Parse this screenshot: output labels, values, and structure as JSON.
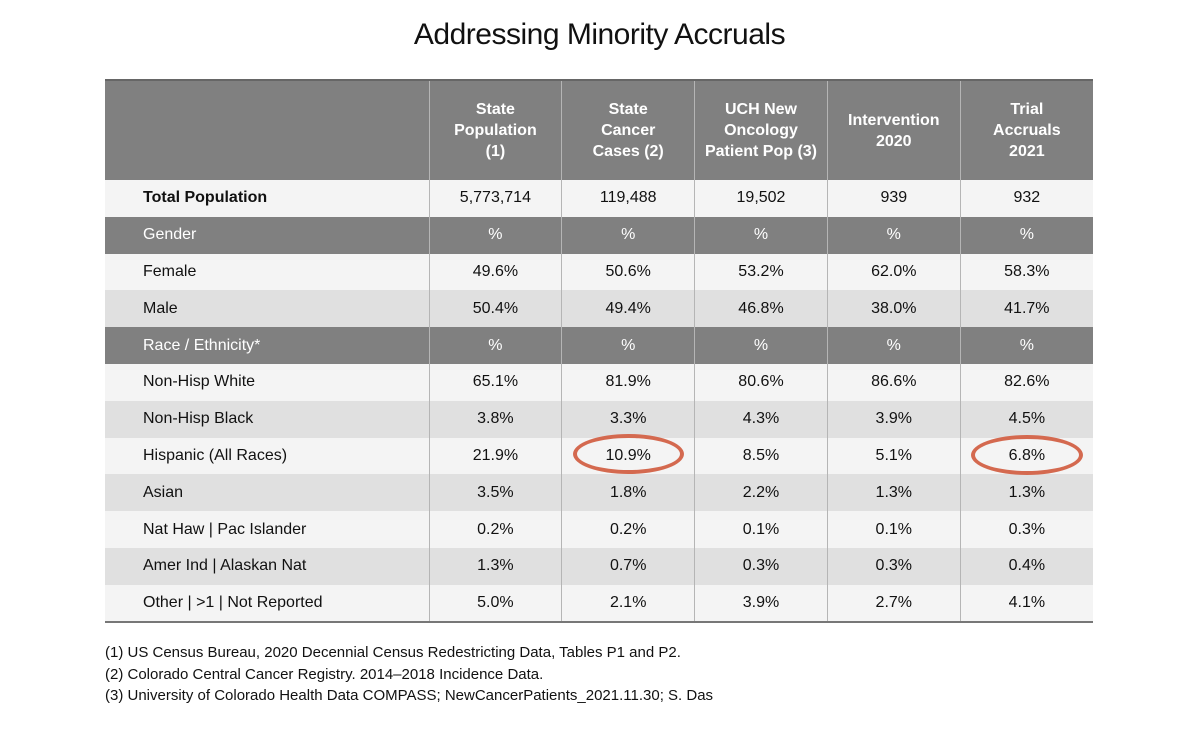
{
  "title": "Addressing Minority Accruals",
  "table": {
    "header": [
      "State\nPopulation\n(1)",
      "State\nCancer\nCases (2)",
      "UCH New\nOncology\nPatient Pop (3)",
      "Intervention\n2020",
      "Trial\nAccruals\n2021"
    ],
    "rows": [
      {
        "style": "total",
        "label": "Total Population",
        "cells": [
          "5,773,714",
          "119,488",
          "19,502",
          "939",
          "932"
        ]
      },
      {
        "style": "section",
        "label": "Gender",
        "cells": [
          "%",
          "%",
          "%",
          "%",
          "%"
        ]
      },
      {
        "style": "light",
        "label": "Female",
        "cells": [
          "49.6%",
          "50.6%",
          "53.2%",
          "62.0%",
          "58.3%"
        ]
      },
      {
        "style": "dark",
        "label": "Male",
        "cells": [
          "50.4%",
          "49.4%",
          "46.8%",
          "38.0%",
          "41.7%"
        ]
      },
      {
        "style": "section",
        "label": "Race / Ethnicity*",
        "cells": [
          "%",
          "%",
          "%",
          "%",
          "%"
        ]
      },
      {
        "style": "light",
        "label": "Non-Hisp White",
        "cells": [
          "65.1%",
          "81.9%",
          "80.6%",
          "86.6%",
          "82.6%"
        ]
      },
      {
        "style": "dark",
        "label": "Non-Hisp Black",
        "cells": [
          "3.8%",
          "3.3%",
          "4.3%",
          "3.9%",
          "4.5%"
        ]
      },
      {
        "style": "light",
        "label": "Hispanic (All Races)",
        "cells": [
          "21.9%",
          "10.9%",
          "8.5%",
          "5.1%",
          "6.8%"
        ]
      },
      {
        "style": "dark",
        "label": "Asian",
        "cells": [
          "3.5%",
          "1.8%",
          "2.2%",
          "1.3%",
          "1.3%"
        ]
      },
      {
        "style": "light",
        "label": "Nat Haw  |  Pac Islander",
        "cells": [
          "0.2%",
          "0.2%",
          "0.1%",
          "0.1%",
          "0.3%"
        ]
      },
      {
        "style": "dark",
        "label": "Amer Ind  |  Alaskan Nat",
        "cells": [
          "1.3%",
          "0.7%",
          "0.3%",
          "0.3%",
          "0.4%"
        ]
      },
      {
        "style": "light",
        "label": "Other  |  >1  |  Not Reported",
        "cells": [
          "5.0%",
          "2.1%",
          "3.9%",
          "2.7%",
          "4.1%"
        ]
      }
    ]
  },
  "footnotes": [
    "(1) US Census Bureau, 2020 Decennial Census Redestricting Data, Tables P1 and P2.",
    "(2) Colorado Central Cancer Registry. 2014–2018 Incidence Data.",
    "(3) University of Colorado Health Data COMPASS; NewCancerPatients_2021.11.30; S. Das"
  ]
}
